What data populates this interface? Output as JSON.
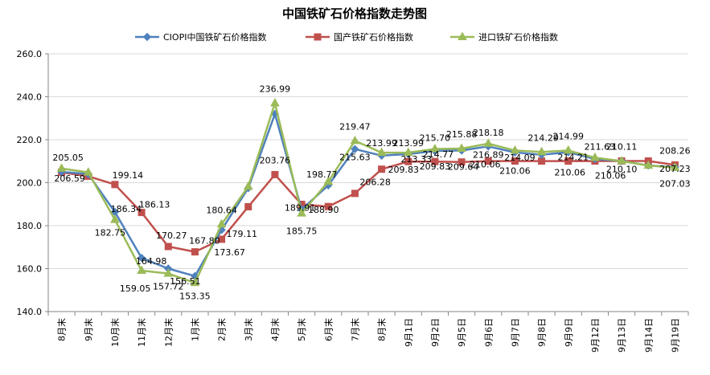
{
  "chart_data": {
    "type": "line",
    "title": "中国铁矿石价格指数走势图",
    "categories": [
      "8月末",
      "9月末",
      "10月末",
      "11月末",
      "12月末",
      "1月末",
      "2月末",
      "3月末",
      "4月末",
      "5月末",
      "6月末",
      "7月末",
      "8月末",
      "9月1日",
      "9月2日",
      "9月5日",
      "9月6日",
      "9月7日",
      "9月8日",
      "9月9日",
      "9月12日",
      "9月13日",
      "9月14日",
      "9月19日"
    ],
    "ylim": [
      140,
      260
    ],
    "yticks": [
      "140.0",
      "160.0",
      "180.0",
      "200.0",
      "220.0",
      "240.0",
      "260.0"
    ],
    "legend_position": "top",
    "series": [
      {
        "name": "CIOPI中国铁矿石价格指数",
        "color": "#4F81BD",
        "marker": "diamond",
        "values": [
          205.05,
          204.0,
          186.34,
          164.98,
          160.0,
          156.51,
          178.0,
          197.5,
          232.0,
          187.5,
          198.77,
          215.63,
          212.6,
          213.33,
          214.77,
          215.0,
          216.89,
          214.09,
          213.0,
          214.21,
          211.0,
          210.1,
          208.0,
          207.23
        ],
        "labels": [
          "205.05",
          "",
          "186.34",
          "164.98",
          "",
          "156.51",
          "",
          "",
          "",
          "",
          "198.77",
          "215.63",
          "",
          "213.33",
          "214.77",
          "",
          "216.89",
          "214.09",
          "",
          "214.21",
          "",
          "210.10",
          "",
          "207.23"
        ]
      },
      {
        "name": "国产铁矿石价格指数",
        "color": "#C0504D",
        "marker": "square",
        "values": [
          204.8,
          203.0,
          199.14,
          186.13,
          170.27,
          167.8,
          173.67,
          188.8,
          203.76,
          189.91,
          188.9,
          195.0,
          206.28,
          209.83,
          209.83,
          209.64,
          210.06,
          210.06,
          210.06,
          210.06,
          210.06,
          210.11,
          210.11,
          208.26
        ],
        "labels": [
          "",
          "",
          "199.14",
          "186.13",
          "170.27",
          "167.80",
          "173.67",
          "",
          "203.76",
          "189.91",
          "188.90",
          "",
          "206.28",
          "209.83",
          "209.83",
          "209.64",
          "210.06",
          "210.06",
          "",
          "210.06",
          "",
          "210.11",
          "",
          "208.26"
        ]
      },
      {
        "name": "进口铁矿石价格指数",
        "color": "#9BBB59",
        "marker": "triangle",
        "values": [
          206.59,
          204.8,
          182.75,
          159.05,
          157.72,
          153.35,
          180.64,
          198.2,
          236.99,
          185.75,
          200.5,
          219.47,
          213.99,
          213.99,
          215.7,
          215.88,
          218.18,
          215.0,
          214.29,
          214.99,
          211.63,
          210.06,
          208.0,
          207.03
        ],
        "labels": [
          "206.59",
          "",
          "182.75",
          "159.05",
          "157.72",
          "153.35",
          "180.64",
          "",
          "236.99",
          "185.75",
          "",
          "219.47",
          "213.99",
          "213.99",
          "215.70",
          "215.88",
          "218.18",
          "",
          "214.29",
          "214.99",
          "211.63",
          "210.06",
          "",
          "207.03"
        ]
      }
    ],
    "extra_labels": [
      "179.11"
    ]
  }
}
